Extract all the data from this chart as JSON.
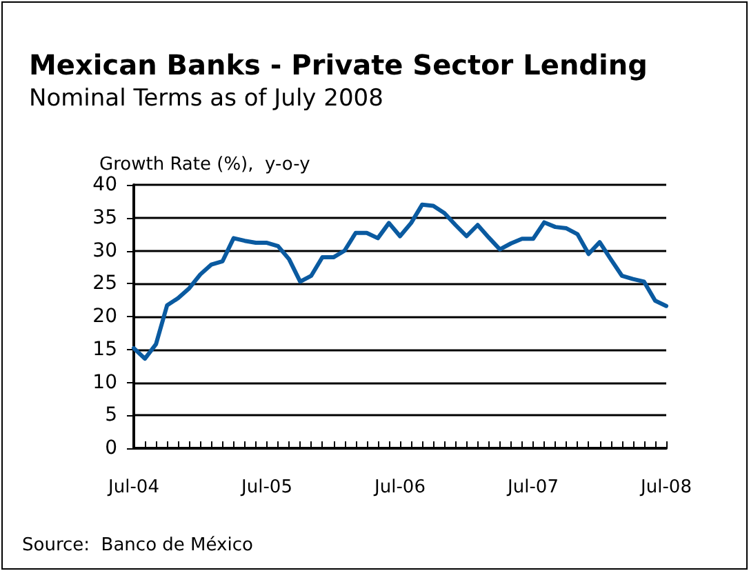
{
  "chart_data": {
    "type": "line",
    "title": "Mexican Banks - Private Sector Lending",
    "subtitle": "Nominal Terms as of July 2008",
    "ylabel": "Growth Rate (%),  y-o-y",
    "categories": [
      "Jul-04",
      null,
      null,
      null,
      null,
      null,
      null,
      null,
      null,
      null,
      null,
      null,
      "Jul-05",
      null,
      null,
      null,
      null,
      null,
      null,
      null,
      null,
      null,
      null,
      null,
      "Jul-06",
      null,
      null,
      null,
      null,
      null,
      null,
      null,
      null,
      null,
      null,
      null,
      "Jul-07",
      null,
      null,
      null,
      null,
      null,
      null,
      null,
      null,
      null,
      null,
      null,
      "Jul-08"
    ],
    "series": [
      {
        "color": "#0a5aa0",
        "values": [
          15.2,
          13.6,
          15.8,
          21.7,
          22.8,
          24.3,
          26.4,
          27.9,
          28.4,
          31.9,
          31.5,
          31.2,
          31.2,
          30.7,
          28.7,
          25.3,
          26.2,
          29,
          29,
          30,
          32.7,
          32.7,
          31.9,
          34.2,
          32.2,
          34.2,
          37,
          36.8,
          35.7,
          33.9,
          32.2,
          33.9,
          32,
          30.2,
          31.1,
          31.8,
          31.8,
          34.3,
          33.6,
          33.4,
          32.5,
          29.5,
          31.3,
          28.7,
          26.2,
          25.7,
          25.3,
          22.4,
          21.6
        ]
      }
    ],
    "ylim": [
      0,
      40
    ],
    "yticks": [
      0,
      5,
      10,
      15,
      20,
      25,
      30,
      35,
      40
    ],
    "grid": "y",
    "marker": "none",
    "line_style": "solid",
    "annotations": [
      "Source:  Banco de México"
    ]
  }
}
